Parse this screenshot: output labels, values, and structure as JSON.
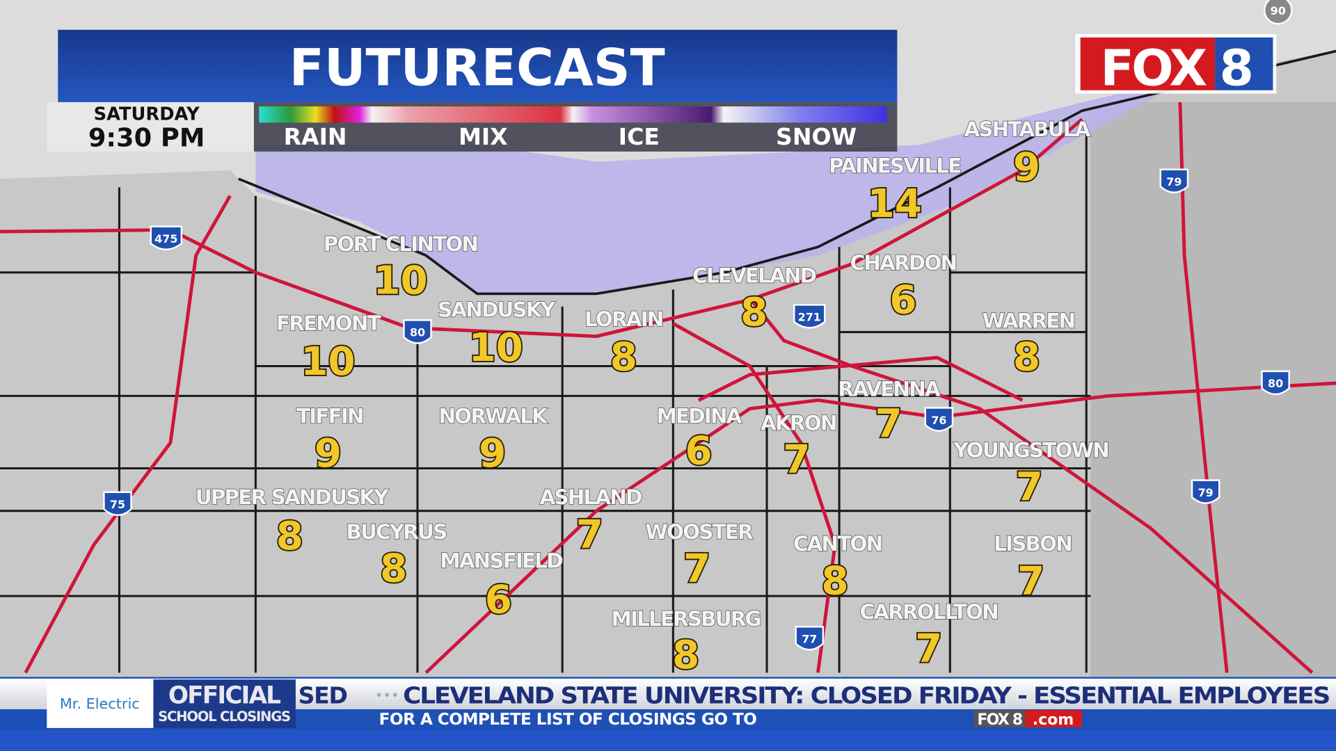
{
  "header": {
    "title": "FUTURECAST",
    "day": "SATURDAY",
    "time": "9:30 PM",
    "legend": [
      "RAIN",
      "MIX",
      "ICE",
      "SNOW"
    ]
  },
  "logo": {
    "text": "FOX 8"
  },
  "cities": [
    {
      "name": "PORT CLINTON",
      "value": "10"
    },
    {
      "name": "FREMONT",
      "value": "10"
    },
    {
      "name": "SANDUSKY",
      "value": "10"
    },
    {
      "name": "LORAIN",
      "value": "8"
    },
    {
      "name": "CLEVELAND",
      "value": "8"
    },
    {
      "name": "PAINESVILLE",
      "value": "14"
    },
    {
      "name": "ASHTABULA",
      "value": "9"
    },
    {
      "name": "CHARDON",
      "value": "6"
    },
    {
      "name": "WARREN",
      "value": "8"
    },
    {
      "name": "TIFFIN",
      "value": "9"
    },
    {
      "name": "NORWALK",
      "value": "9"
    },
    {
      "name": "MEDINA",
      "value": "6"
    },
    {
      "name": "AKRON",
      "value": "7"
    },
    {
      "name": "RAVENNA",
      "value": "7"
    },
    {
      "name": "YOUNGSTOWN",
      "value": "7"
    },
    {
      "name": "UPPER SANDUSKY",
      "value": "8"
    },
    {
      "name": "BUCYRUS",
      "value": "8"
    },
    {
      "name": "ASHLAND",
      "value": "7"
    },
    {
      "name": "MANSFIELD",
      "value": "6"
    },
    {
      "name": "WOOSTER",
      "value": "7"
    },
    {
      "name": "CANTON",
      "value": "8"
    },
    {
      "name": "LISBON",
      "value": "7"
    },
    {
      "name": "MILLERSBURG",
      "value": "8"
    },
    {
      "name": "CARROLLTON",
      "value": "7"
    }
  ],
  "interstates": [
    "475",
    "80",
    "271",
    "76",
    "75",
    "77",
    "79",
    "80",
    "79",
    "90"
  ],
  "ticker": {
    "sponsor": "Mr. Electric",
    "badge_top": "OFFICIAL",
    "badge_bottom": "SCHOOL CLOSINGS",
    "prev_fragment": "SED",
    "headline": "CLEVELAND STATE UNIVERSITY: CLOSED FRIDAY - ESSENTIAL EMPLOYEES",
    "subline": "FOR A COMPLETE LIST OF CLOSINGS GO TO",
    "site_brand": "FOX 8",
    "site_suffix": ".com"
  },
  "colors": {
    "title_bar": "#1f4fb0",
    "value": "#f2c72a",
    "road": "#d0143a",
    "snow": "#b9b4ea",
    "logo_red": "#d41a1f"
  }
}
